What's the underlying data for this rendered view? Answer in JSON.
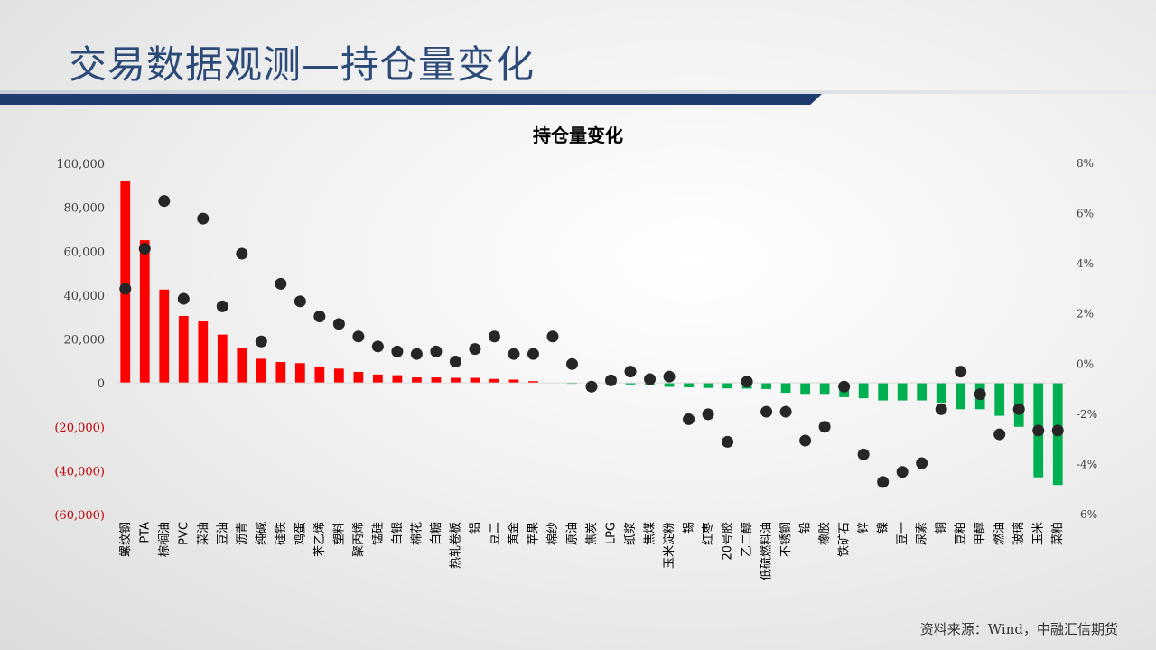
{
  "slide": {
    "title": "交易数据观测—持仓量变化",
    "source": "资料来源：Wind，中融汇信期货"
  },
  "colors": {
    "positive_bar": "#ff0000",
    "negative_bar": "#00b050",
    "dot": "#262626",
    "negative_left_tick": "#c00000",
    "title_blue": "#2b4a78"
  },
  "chart_data": {
    "type": "bar",
    "title": "持仓量变化",
    "categories": [
      "螺纹钢",
      "PTA",
      "棕榈油",
      "PVC",
      "菜油",
      "豆油",
      "沥青",
      "纯碱",
      "硅铁",
      "鸡蛋",
      "苯乙烯",
      "塑料",
      "聚丙烯",
      "锰硅",
      "白银",
      "棉花",
      "白糖",
      "热轧卷板",
      "铝",
      "豆二",
      "黄金",
      "苹果",
      "棉纱",
      "原油",
      "焦炭",
      "LPG",
      "纸浆",
      "焦煤",
      "玉米淀粉",
      "锡",
      "红枣",
      "20号胶",
      "乙二醇",
      "低硫燃料油",
      "不锈钢",
      "铅",
      "橡胶",
      "铁矿石",
      "锌",
      "镍",
      "豆一",
      "尿素",
      "铜",
      "豆粕",
      "甲醇",
      "燃油",
      "玻璃",
      "玉米",
      "菜粕"
    ],
    "series": [
      {
        "axis": "left",
        "values": [
          92000,
          65000,
          42500,
          30500,
          28000,
          22000,
          16000,
          11000,
          9500,
          9000,
          7500,
          6500,
          5000,
          3800,
          3500,
          2500,
          2500,
          2300,
          2300,
          1800,
          1500,
          800,
          0,
          -200,
          -400,
          -600,
          -700,
          -800,
          -1800,
          -2000,
          -2300,
          -2500,
          -2600,
          -2800,
          -4500,
          -5000,
          -5000,
          -6500,
          -7000,
          -8000,
          -8000,
          -8000,
          -9000,
          -12000,
          -12000,
          -15000,
          -20000,
          -43000,
          -46500
        ]
      },
      {
        "axis": "right",
        "values": [
          3.0,
          4.6,
          6.5,
          2.6,
          5.8,
          2.3,
          4.4,
          0.9,
          3.2,
          2.5,
          1.9,
          1.6,
          1.1,
          0.7,
          0.5,
          0.4,
          0.5,
          0.1,
          0.6,
          1.1,
          0.4,
          0.4,
          1.1,
          0.0,
          -0.9,
          -0.65,
          -0.3,
          -0.6,
          -0.5,
          -2.2,
          -2.0,
          -3.1,
          -0.7,
          -1.9,
          -1.9,
          -3.05,
          -2.5,
          -0.9,
          -3.6,
          -4.7,
          -4.3,
          -3.95,
          -1.8,
          -0.3,
          -1.2,
          -2.8,
          -1.8,
          -2.65,
          -2.65
        ]
      }
    ],
    "y_left": {
      "min": -60000,
      "max": 100000,
      "step": 20000,
      "ticks": [
        "100,000",
        "80,000",
        "60,000",
        "40,000",
        "20,000",
        "0",
        "(20,000)",
        "(40,000)",
        "(60,000)"
      ]
    },
    "y_right": {
      "min": -6,
      "max": 8,
      "step": 2,
      "ticks": [
        "8%",
        "6%",
        "4%",
        "2%",
        "0%",
        "-2%",
        "-4%",
        "-6%"
      ]
    },
    "grid": false,
    "legend": "none"
  }
}
